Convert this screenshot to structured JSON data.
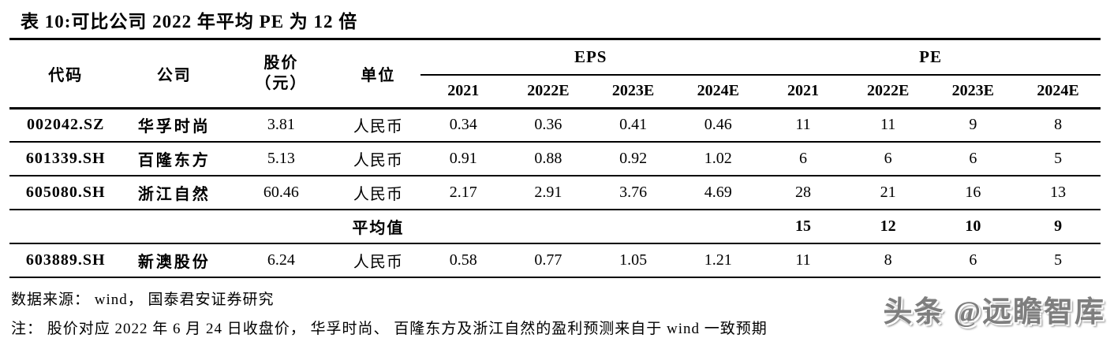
{
  "title": "表 10:可比公司 2022 年平均 PE 为 12 倍",
  "table": {
    "headers": {
      "code": "代码",
      "company": "公司",
      "price_line1": "股价",
      "price_line2": "（元）",
      "unit": "单位",
      "eps_group": "EPS",
      "pe_group": "PE",
      "years": [
        "2021",
        "2022E",
        "2023E",
        "2024E"
      ]
    },
    "average_label": "平均值",
    "rows": [
      {
        "code": "002042.SZ",
        "company": "华孚时尚",
        "price": "3.81",
        "unit": "人民币",
        "eps": [
          "0.34",
          "0.36",
          "0.41",
          "0.46"
        ],
        "pe": [
          "11",
          "11",
          "9",
          "8"
        ],
        "is_average": false
      },
      {
        "code": "601339.SH",
        "company": "百隆东方",
        "price": "5.13",
        "unit": "人民币",
        "eps": [
          "0.91",
          "0.88",
          "0.92",
          "1.02"
        ],
        "pe": [
          "6",
          "6",
          "6",
          "5"
        ],
        "is_average": false
      },
      {
        "code": "605080.SH",
        "company": "浙江自然",
        "price": "60.46",
        "unit": "人民币",
        "eps": [
          "2.17",
          "2.91",
          "3.76",
          "4.69"
        ],
        "pe": [
          "28",
          "21",
          "16",
          "13"
        ],
        "is_average": false
      },
      {
        "code": "",
        "company": "",
        "price": "",
        "unit": "平均值",
        "eps": [
          "",
          "",
          "",
          ""
        ],
        "pe": [
          "15",
          "12",
          "10",
          "9"
        ],
        "is_average": true
      },
      {
        "code": "603889.SH",
        "company": "新澳股份",
        "price": "6.24",
        "unit": "人民币",
        "eps": [
          "0.58",
          "0.77",
          "1.05",
          "1.21"
        ],
        "pe": [
          "11",
          "8",
          "6",
          "5"
        ],
        "is_average": false
      }
    ]
  },
  "footer": {
    "source": "数据来源： wind， 国泰君安证券研究",
    "note": "注： 股价对应 2022 年 6 月 24 日收盘价， 华孚时尚、 百隆东方及浙江自然的盈利预测来自于 wind 一致预期",
    "watermark": "头条 @远瞻智库"
  }
}
